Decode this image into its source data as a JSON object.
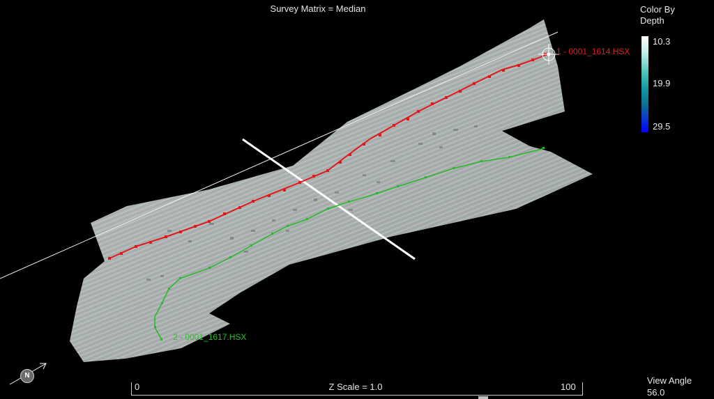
{
  "title": "Survey Matrix = Median",
  "legend": {
    "title_line1": "Color By",
    "title_line2": "Depth",
    "ticks": [
      "10.3",
      "19.9",
      "29.5"
    ]
  },
  "lines": [
    {
      "label": "1 - 0001_1614.HSX",
      "color": "#e01818"
    },
    {
      "label": "2 - 0001_1617.HSX",
      "color": "#22bb22"
    }
  ],
  "scale": {
    "min": "0",
    "max": "100",
    "label": "Z Scale = 1.0"
  },
  "view_angle": {
    "label": "View Angle",
    "value": "56.0"
  },
  "north": "N",
  "icons": [
    "north-arrow-icon",
    "crosshair-icon"
  ]
}
